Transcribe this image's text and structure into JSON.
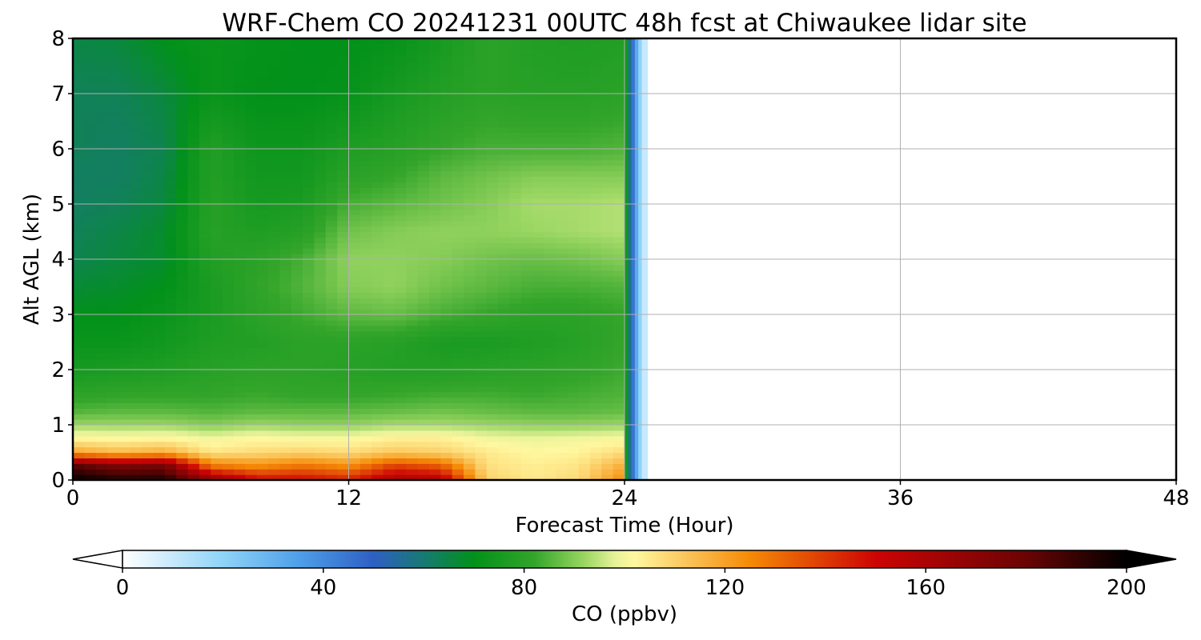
{
  "chart_data": {
    "type": "heatmap",
    "title": "WRF-Chem CO  20241231 00UTC 48h fcst at Chiwaukee lidar site",
    "xlabel": "Forecast Time (Hour)",
    "ylabel": "Alt AGL (km)",
    "xlim": [
      0,
      48
    ],
    "ylim": [
      0,
      8
    ],
    "xticks": [
      "0",
      "12",
      "24",
      "36",
      "48"
    ],
    "yticks": [
      "0",
      "1",
      "2",
      "3",
      "4",
      "5",
      "6",
      "7",
      "8"
    ],
    "grid": true,
    "colorbar": {
      "label": "CO  (ppbv)",
      "range": [
        0,
        200
      ],
      "ticks": [
        "0",
        "40",
        "80",
        "120",
        "160",
        "200"
      ],
      "extend": "both",
      "stops": [
        {
          "value": 0,
          "color": "#ffffff"
        },
        {
          "value": 20,
          "color": "#8fd3f8"
        },
        {
          "value": 35,
          "color": "#4fa0e8"
        },
        {
          "value": 50,
          "color": "#2e5fc4"
        },
        {
          "value": 60,
          "color": "#177a72"
        },
        {
          "value": 70,
          "color": "#02911a"
        },
        {
          "value": 82,
          "color": "#33a52a"
        },
        {
          "value": 92,
          "color": "#9ad662"
        },
        {
          "value": 98,
          "color": "#e5f298"
        },
        {
          "value": 102,
          "color": "#fff8a0"
        },
        {
          "value": 110,
          "color": "#fcd06a"
        },
        {
          "value": 125,
          "color": "#f58a06"
        },
        {
          "value": 150,
          "color": "#cc0404"
        },
        {
          "value": 180,
          "color": "#6a0404"
        },
        {
          "value": 200,
          "color": "#000000"
        }
      ]
    },
    "data_extent_hours": [
      0,
      25
    ],
    "times": [
      0,
      2,
      4,
      6,
      8,
      10,
      12,
      14,
      16,
      18,
      20,
      22,
      24
    ],
    "levels": [
      0,
      0.25,
      0.5,
      0.75,
      1,
      1.25,
      1.5,
      2,
      2.5,
      3,
      3.5,
      4,
      4.5,
      5,
      5.5,
      6,
      7,
      8
    ],
    "values": [
      [
        200,
        195,
        195,
        170,
        150,
        150,
        145,
        160,
        158,
        110,
        105,
        108,
        125
      ],
      [
        185,
        175,
        178,
        130,
        125,
        130,
        125,
        140,
        135,
        107,
        104,
        106,
        118
      ],
      [
        120,
        115,
        118,
        106,
        108,
        110,
        108,
        112,
        110,
        105,
        102,
        103,
        108
      ],
      [
        103,
        102,
        103,
        100,
        102,
        101,
        101,
        104,
        104,
        100,
        99,
        100,
        101
      ],
      [
        92,
        92,
        92,
        90,
        92,
        91,
        91,
        93,
        93,
        92,
        91,
        91,
        92
      ],
      [
        85,
        86,
        86,
        85,
        86,
        86,
        86,
        87,
        88,
        87,
        86,
        86,
        87
      ],
      [
        81,
        82,
        82,
        82,
        83,
        82,
        82,
        83,
        84,
        84,
        83,
        84,
        85
      ],
      [
        75,
        76,
        77,
        79,
        80,
        80,
        79,
        78,
        78,
        79,
        80,
        81,
        83
      ],
      [
        72,
        72,
        74,
        77,
        78,
        80,
        80,
        79,
        76,
        76,
        77,
        79,
        82
      ],
      [
        70,
        70,
        72,
        76,
        80,
        83,
        86,
        87,
        84,
        82,
        80,
        80,
        82
      ],
      [
        67,
        68,
        70,
        76,
        81,
        85,
        90,
        91,
        88,
        86,
        84,
        84,
        85
      ],
      [
        64,
        66,
        68,
        78,
        80,
        84,
        91,
        91,
        90,
        88,
        87,
        88,
        90
      ],
      [
        63,
        65,
        68,
        79,
        77,
        79,
        88,
        90,
        91,
        91,
        92,
        93,
        94
      ],
      [
        62,
        63,
        66,
        79,
        75,
        76,
        84,
        86,
        88,
        90,
        93,
        93,
        94
      ],
      [
        62,
        62,
        65,
        78,
        74,
        74,
        80,
        82,
        86,
        88,
        90,
        90,
        90
      ],
      [
        63,
        62,
        64,
        78,
        73,
        73,
        77,
        79,
        82,
        84,
        84,
        84,
        85
      ],
      [
        63,
        63,
        66,
        72,
        70,
        70,
        71,
        75,
        78,
        80,
        79,
        79,
        80
      ],
      [
        65,
        66,
        70,
        72,
        71,
        70,
        70,
        71,
        75,
        80,
        78,
        77,
        78
      ]
    ]
  }
}
